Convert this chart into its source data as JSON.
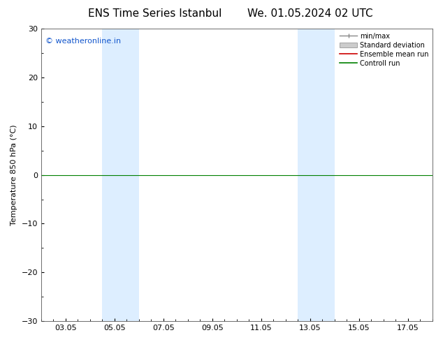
{
  "title_left": "ENS Time Series Istanbul",
  "title_right": "We. 01.05.2024 02 UTC",
  "ylabel": "Temperature 850 hPa (°C)",
  "watermark": "© weatheronline.in",
  "ylim": [
    -30,
    30
  ],
  "yticks": [
    -30,
    -20,
    -10,
    0,
    10,
    20,
    30
  ],
  "xtick_labels": [
    "03.05",
    "05.05",
    "07.05",
    "09.05",
    "11.05",
    "13.05",
    "15.05",
    "17.05"
  ],
  "xtick_positions": [
    2,
    4,
    6,
    8,
    10,
    12,
    14,
    16
  ],
  "xlim": [
    1,
    17
  ],
  "shaded_bands": [
    {
      "xmin": 3.5,
      "xmax": 4.0,
      "color": "#ddeeff"
    },
    {
      "xmin": 4.0,
      "xmax": 5.0,
      "color": "#ddeeff"
    },
    {
      "xmin": 11.5,
      "xmax": 12.0,
      "color": "#ddeeff"
    },
    {
      "xmin": 12.0,
      "xmax": 13.0,
      "color": "#ddeeff"
    }
  ],
  "hline_y": 0,
  "hline_color": "#008000",
  "legend_items": [
    {
      "label": "min/max",
      "color": "#888888",
      "style": "line_with_cap"
    },
    {
      "label": "Standard deviation",
      "color": "#cccccc",
      "style": "rect"
    },
    {
      "label": "Ensemble mean run",
      "color": "#cc0000",
      "style": "line"
    },
    {
      "label": "Controll run",
      "color": "#008000",
      "style": "line"
    }
  ],
  "bg_color": "#ffffff",
  "plot_bg_color": "#ffffff",
  "title_fontsize": 11,
  "tick_fontsize": 8,
  "ylabel_fontsize": 8,
  "watermark_fontsize": 8,
  "watermark_color": "#1155cc",
  "spine_color": "#555555"
}
